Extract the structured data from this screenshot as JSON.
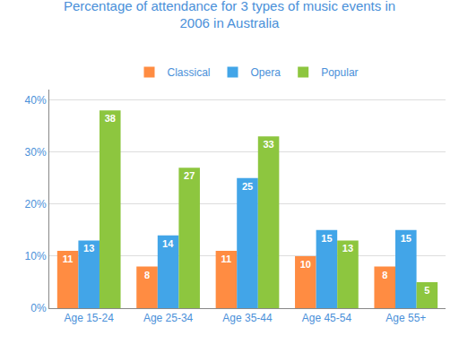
{
  "chart_data": {
    "type": "bar",
    "title": "Percentage of attendance for 3 types of music events in\n2006 in Australia",
    "categories": [
      "Age 15-24",
      "Age 25-34",
      "Age 35-44",
      "Age 45-54",
      "Age 55+"
    ],
    "series": [
      {
        "name": "Classical",
        "color": "#FF8C42",
        "values": [
          11,
          8,
          11,
          10,
          8
        ]
      },
      {
        "name": "Opera",
        "color": "#42A5E8",
        "values": [
          13,
          14,
          25,
          15,
          15
        ]
      },
      {
        "name": "Popular",
        "color": "#8DC63F",
        "values": [
          38,
          27,
          33,
          13,
          5
        ]
      }
    ],
    "ylim": [
      0,
      42
    ],
    "yticks": [
      {
        "value": 0,
        "label": "0%"
      },
      {
        "value": 10,
        "label": "10%"
      },
      {
        "value": 20,
        "label": "20%"
      },
      {
        "value": 30,
        "label": "30%"
      },
      {
        "value": 40,
        "label": "40%"
      }
    ],
    "grid": true,
    "legend": "top",
    "data_labels": true
  }
}
